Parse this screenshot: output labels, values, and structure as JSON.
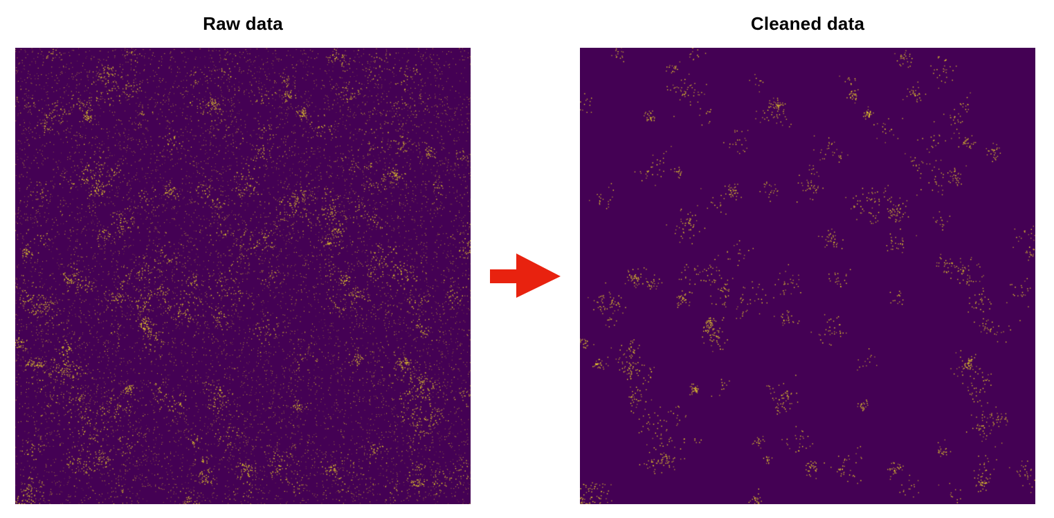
{
  "panels": {
    "raw": {
      "title": "Raw data"
    },
    "cleaned": {
      "title": "Cleaned data"
    }
  },
  "colors": {
    "background": "#440154",
    "point": "#FDE725",
    "arrow": "#E8220F"
  },
  "icons": {
    "arrow": "right-arrow-icon"
  }
}
